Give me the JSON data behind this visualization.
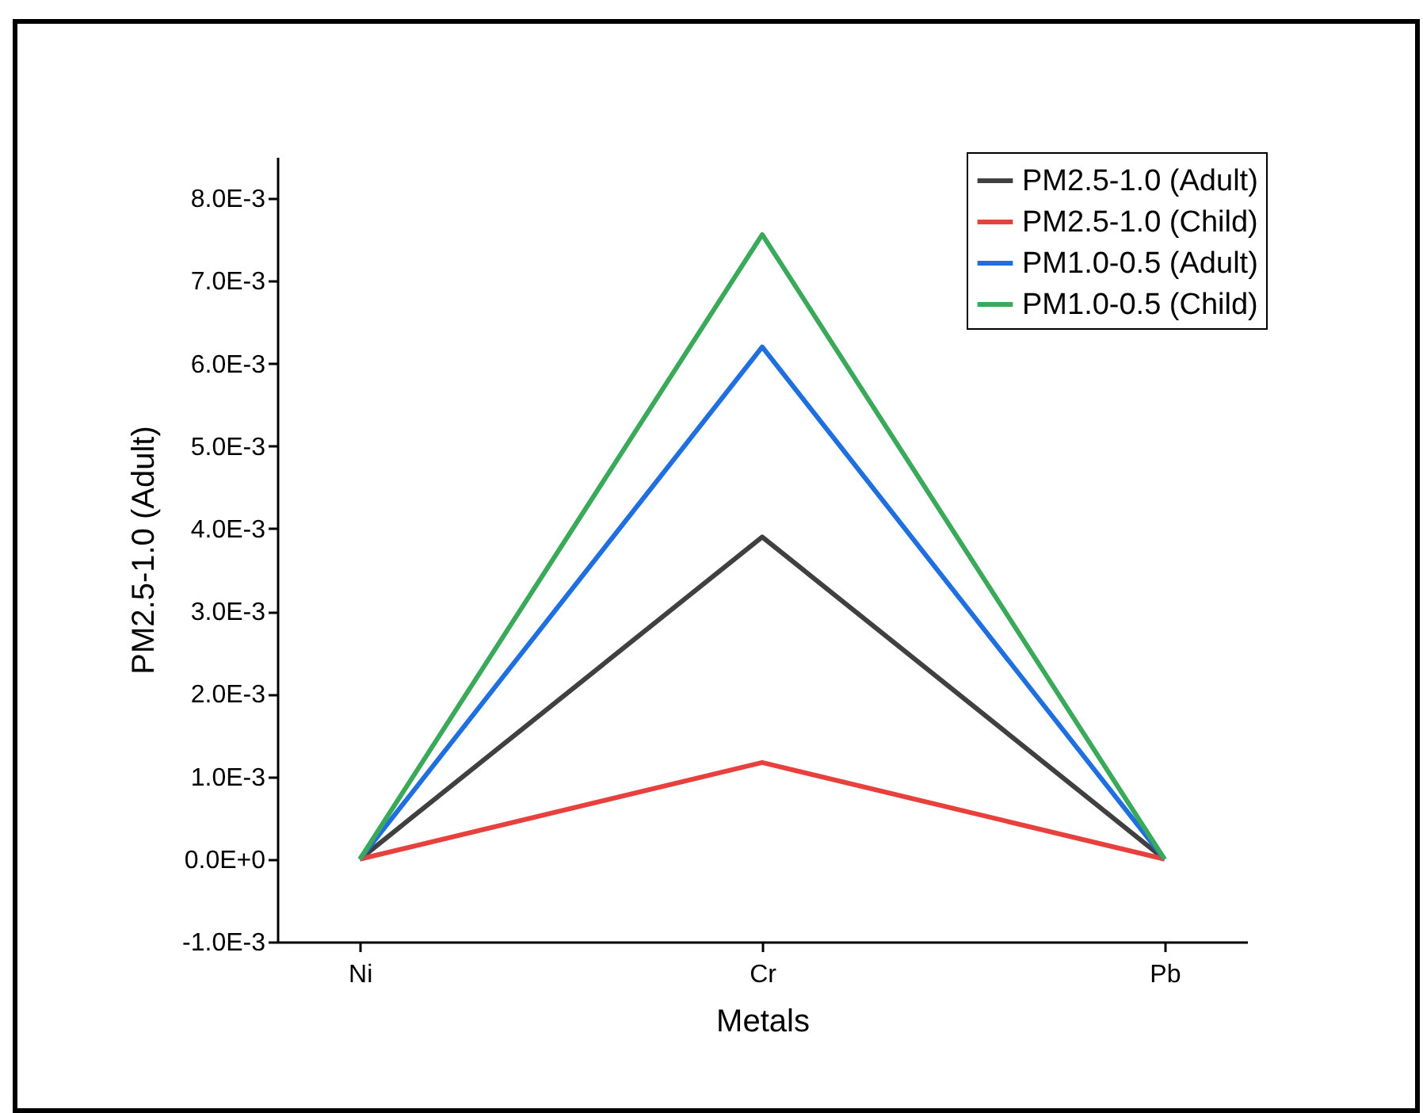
{
  "chart_data": {
    "type": "line",
    "xlabel": "Metals",
    "ylabel": "PM2.5-1.0 (Adult)",
    "categories": [
      "Ni",
      "Cr",
      "Pb"
    ],
    "series": [
      {
        "name": "PM2.5-1.0 (Adult)",
        "color": "#404040",
        "values": [
          0,
          0.0039,
          0
        ]
      },
      {
        "name": "PM2.5-1.0 (Child)",
        "color": "#e8403c",
        "values": [
          0,
          0.00117,
          0
        ]
      },
      {
        "name": "PM1.0-0.5 (Adult)",
        "color": "#1f6fe0",
        "values": [
          0,
          0.0062,
          0
        ]
      },
      {
        "name": "PM1.0-0.5 (Child)",
        "color": "#3aaa5a",
        "values": [
          0,
          0.00756,
          0
        ]
      }
    ],
    "ylim": [
      -0.001,
      0.0085
    ],
    "yticks": [
      {
        "value": -0.001,
        "label": "-1.0E-3"
      },
      {
        "value": 0,
        "label": "0.0E+0"
      },
      {
        "value": 0.001,
        "label": "1.0E-3"
      },
      {
        "value": 0.002,
        "label": "2.0E-3"
      },
      {
        "value": 0.003,
        "label": "3.0E-3"
      },
      {
        "value": 0.004,
        "label": "4.0E-3"
      },
      {
        "value": 0.005,
        "label": "5.0E-3"
      },
      {
        "value": 0.006,
        "label": "6.0E-3"
      },
      {
        "value": 0.007,
        "label": "7.0E-3"
      },
      {
        "value": 0.008,
        "label": "8.0E-3"
      }
    ],
    "grid": false,
    "legend": "top right",
    "marker": "none",
    "line_style": "solid"
  }
}
